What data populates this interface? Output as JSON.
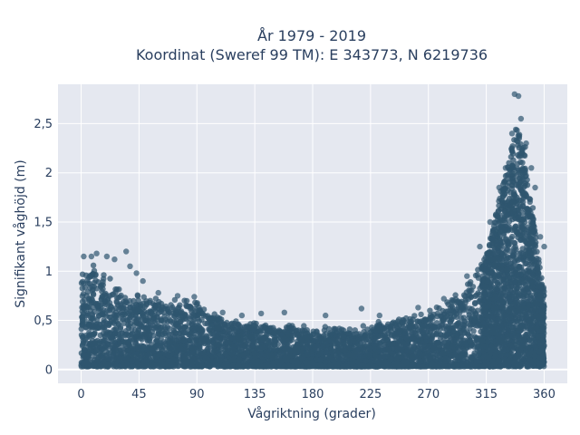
{
  "chart_data": {
    "type": "scatter",
    "title_line1": "År 1979 - 2019",
    "title_line2": "Koordinat (Sweref 99 TM): E 343773, N 6219736",
    "xlabel": "Vågriktning (grader)",
    "ylabel": "Signifikant våghöjd (m)",
    "xlim": [
      -18,
      378
    ],
    "ylim": [
      -0.14,
      2.9
    ],
    "x_ticks": [
      0,
      45,
      90,
      135,
      180,
      225,
      270,
      315,
      360
    ],
    "x_tick_labels": [
      "0",
      "45",
      "90",
      "135",
      "180",
      "225",
      "270",
      "315",
      "360"
    ],
    "y_ticks": [
      0,
      0.5,
      1,
      1.5,
      2,
      2.5
    ],
    "y_tick_labels": [
      "0",
      "0,5",
      "1",
      "1,5",
      "2",
      "2,5"
    ],
    "grid": true,
    "marker_color": "#2f566f",
    "plot_background": "#e5e8f0",
    "envelope": {
      "direction": [
        0,
        10,
        20,
        30,
        45,
        60,
        75,
        90,
        105,
        120,
        135,
        150,
        165,
        180,
        195,
        210,
        225,
        240,
        255,
        270,
        285,
        295,
        305,
        315,
        320,
        325,
        330,
        335,
        340,
        345,
        350,
        355,
        360
      ],
      "typical_max_height": [
        1.0,
        1.1,
        0.95,
        0.8,
        0.75,
        0.72,
        0.7,
        0.68,
        0.55,
        0.5,
        0.48,
        0.45,
        0.45,
        0.42,
        0.43,
        0.42,
        0.45,
        0.5,
        0.55,
        0.6,
        0.7,
        0.8,
        0.95,
        1.2,
        1.45,
        1.75,
        2.0,
        2.3,
        2.6,
        2.2,
        1.7,
        1.2,
        0.8
      ]
    },
    "outliers": [
      {
        "x": 2,
        "y": 1.15
      },
      {
        "x": 8,
        "y": 1.15
      },
      {
        "x": 12,
        "y": 1.18
      },
      {
        "x": 20,
        "y": 1.15
      },
      {
        "x": 26,
        "y": 1.12
      },
      {
        "x": 35,
        "y": 1.2
      },
      {
        "x": 38,
        "y": 1.05
      },
      {
        "x": 43,
        "y": 0.98
      },
      {
        "x": 48,
        "y": 0.9
      },
      {
        "x": 60,
        "y": 0.78
      },
      {
        "x": 75,
        "y": 0.75
      },
      {
        "x": 88,
        "y": 0.74
      },
      {
        "x": 110,
        "y": 0.58
      },
      {
        "x": 125,
        "y": 0.55
      },
      {
        "x": 140,
        "y": 0.57
      },
      {
        "x": 158,
        "y": 0.58
      },
      {
        "x": 190,
        "y": 0.55
      },
      {
        "x": 218,
        "y": 0.62
      },
      {
        "x": 232,
        "y": 0.55
      },
      {
        "x": 262,
        "y": 0.63
      },
      {
        "x": 282,
        "y": 0.72
      },
      {
        "x": 300,
        "y": 0.95
      },
      {
        "x": 310,
        "y": 1.25
      },
      {
        "x": 318,
        "y": 1.5
      },
      {
        "x": 325,
        "y": 1.85
      },
      {
        "x": 330,
        "y": 2.05
      },
      {
        "x": 335,
        "y": 2.4
      },
      {
        "x": 337,
        "y": 2.8
      },
      {
        "x": 340,
        "y": 2.78
      },
      {
        "x": 342,
        "y": 2.55
      },
      {
        "x": 346,
        "y": 2.3
      },
      {
        "x": 350,
        "y": 2.05
      },
      {
        "x": 353,
        "y": 1.85
      },
      {
        "x": 357,
        "y": 1.35
      },
      {
        "x": 360,
        "y": 1.25
      }
    ]
  }
}
